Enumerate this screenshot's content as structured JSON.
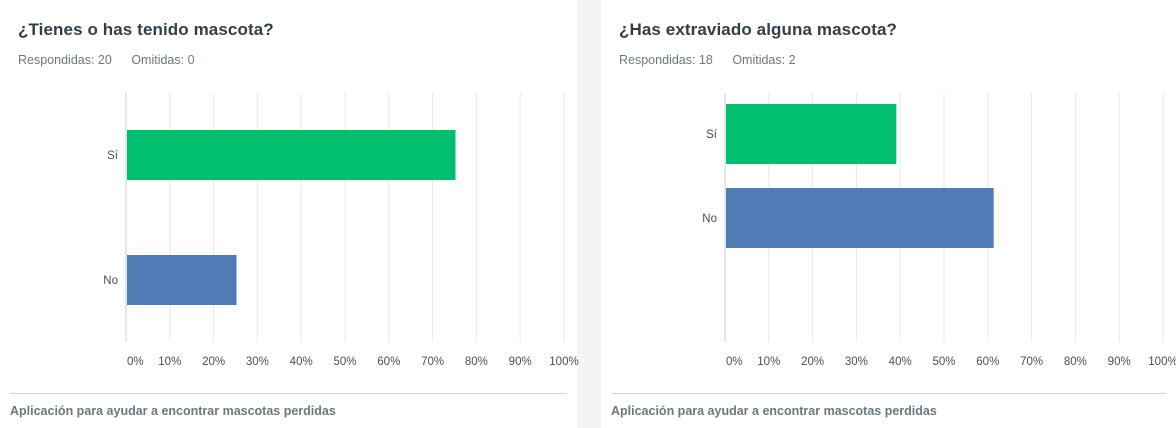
{
  "cards": [
    {
      "title": "¿Tienes o has tenido mascota?",
      "answered": "Respondidas: 20",
      "skipped": "Omitidas: 0",
      "footer": "Aplicación para ayudar a encontrar mascotas perdidas"
    },
    {
      "title": "¿Has extraviado alguna mascota?",
      "answered": "Respondidas: 18",
      "skipped": "Omitidas: 2",
      "footer": "Aplicación para ayudar a encontrar mascotas perdidas"
    }
  ],
  "chart_data": [
    {
      "type": "bar",
      "orientation": "horizontal",
      "categories": [
        "Sí",
        "No"
      ],
      "values": [
        75,
        25
      ],
      "colors": [
        "#00bf6f",
        "#507cb6"
      ],
      "xlim": [
        0,
        100
      ],
      "ticks": [
        "0%",
        "10%",
        "20%",
        "30%",
        "40%",
        "50%",
        "60%",
        "70%",
        "80%",
        "90%",
        "100%"
      ],
      "grid": true
    },
    {
      "type": "bar",
      "orientation": "horizontal",
      "categories": [
        "Sí",
        "No"
      ],
      "values": [
        38.89,
        61.11
      ],
      "colors": [
        "#00bf6f",
        "#507cb6"
      ],
      "xlim": [
        0,
        100
      ],
      "ticks": [
        "0%",
        "10%",
        "20%",
        "30%",
        "40%",
        "50%",
        "60%",
        "70%",
        "80%",
        "90%",
        "100%"
      ],
      "grid": true
    }
  ]
}
